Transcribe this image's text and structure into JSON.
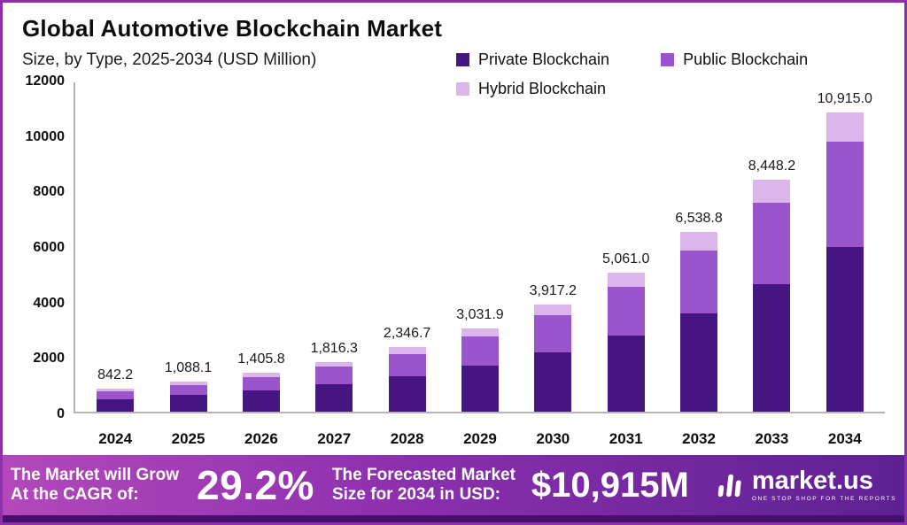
{
  "header": {
    "title": "Global Automotive Blockchain Market",
    "subtitle": "Size, by Type, 2025-2034 (USD Million)"
  },
  "legend": [
    {
      "label": "Private Blockchain",
      "color": "#471582"
    },
    {
      "label": "Public Blockchain",
      "color": "#9a55cd"
    },
    {
      "label": "Hybrid Blockchain",
      "color": "#dcb5ea"
    }
  ],
  "colors": {
    "page_border": "#8c2fa8",
    "banner_gradient_left": "#b348bb",
    "banner_gradient_right": "#5d2193",
    "bottom_strip": "#45106e",
    "axis_line": "#b5b5b5"
  },
  "chart_data": {
    "type": "bar",
    "stacked": true,
    "title": "Global Automotive Blockchain Market",
    "subtitle": "Size, by Type, 2025-2034 (USD Million)",
    "xlabel": "",
    "ylabel": "USD Million",
    "ylim": [
      0,
      12000
    ],
    "yticks": [
      0,
      2000,
      4000,
      6000,
      8000,
      10000,
      12000
    ],
    "ytick_labels": [
      "12000",
      "10000",
      "8000",
      "6000",
      "4000",
      "2000",
      "0"
    ],
    "grid": false,
    "legend_position": "top-right",
    "categories": [
      "2024",
      "2025",
      "2026",
      "2027",
      "2028",
      "2029",
      "2030",
      "2031",
      "2032",
      "2033",
      "2034"
    ],
    "series": [
      {
        "name": "Private Blockchain",
        "color": "#471582",
        "values": [
          463.2,
          598.5,
          773.2,
          999.0,
          1290.7,
          1667.5,
          2154.5,
          2783.6,
          3596.3,
          4646.5,
          6003.3
        ]
      },
      {
        "name": "Public Blockchain",
        "color": "#9a55cd",
        "values": [
          294.8,
          380.8,
          492.0,
          635.7,
          821.3,
          1061.2,
          1371.0,
          1771.4,
          2288.6,
          2956.9,
          3820.3
        ]
      },
      {
        "name": "Hybrid Blockchain",
        "color": "#dcb5ea",
        "values": [
          84.2,
          108.8,
          140.6,
          181.6,
          234.7,
          303.2,
          391.7,
          506.1,
          653.9,
          844.8,
          1091.5
        ]
      }
    ],
    "totals": [
      842.2,
      1088.1,
      1405.8,
      1816.3,
      2346.7,
      3031.9,
      3917.2,
      5061.0,
      6538.8,
      8448.2,
      10915.0
    ],
    "totals_formatted": [
      "842.2",
      "1,088.1",
      "1,405.8",
      "1,816.3",
      "2,346.7",
      "3,031.9",
      "3,917.2",
      "5,061.0",
      "6,538.8",
      "8,448.2",
      "10,915.0"
    ]
  },
  "banner": {
    "cagr_label_line1": "The Market will Grow",
    "cagr_label_line2": "At the CAGR of:",
    "cagr_value": "29.2%",
    "forecast_label_line1": "The Forecasted Market",
    "forecast_label_line2": "Size for 2034 in USD:",
    "forecast_value": "$10,915M",
    "brand": "market.us",
    "brand_tagline": "ONE STOP SHOP FOR THE REPORTS"
  }
}
